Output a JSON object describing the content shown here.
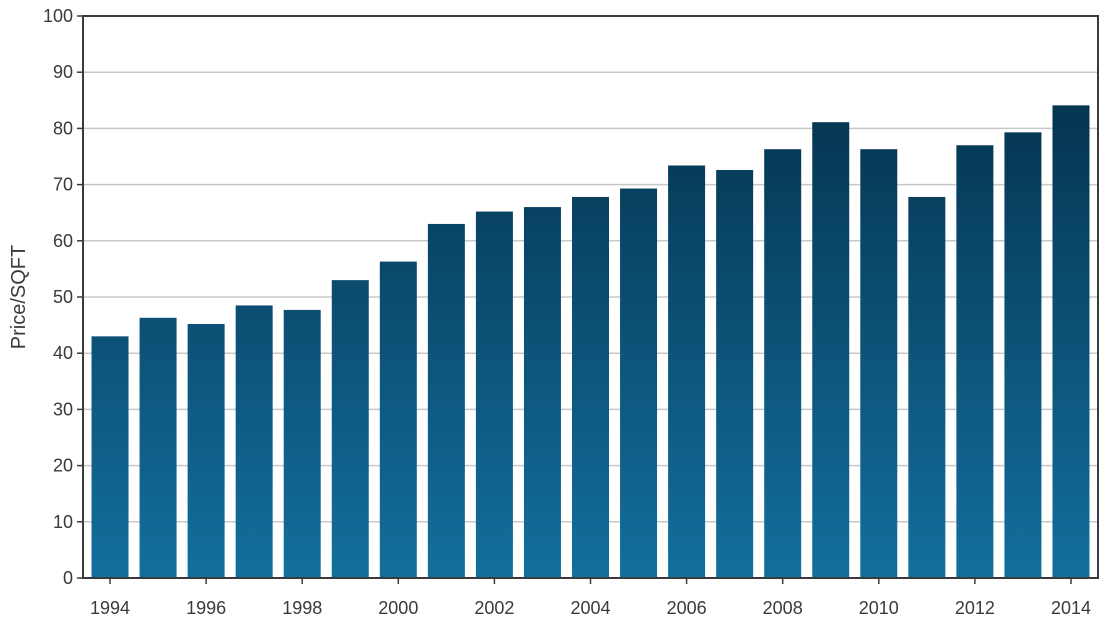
{
  "chart_data": {
    "type": "bar",
    "title": "",
    "xlabel": "",
    "ylabel": "Price/SQFT",
    "categories": [
      "1994",
      "1995",
      "1996",
      "1997",
      "1998",
      "1999",
      "2000",
      "2001",
      "2002",
      "2003",
      "2004",
      "2005",
      "2006",
      "2007",
      "2008",
      "2009",
      "2010",
      "2011",
      "2012",
      "2013",
      "2014"
    ],
    "x_tick_labels": [
      "1994",
      "1996",
      "1998",
      "2000",
      "2002",
      "2004",
      "2006",
      "2008",
      "2010",
      "2012",
      "2014"
    ],
    "values": [
      43,
      46.3,
      45.2,
      48.5,
      47.7,
      53,
      56.3,
      63,
      65.2,
      66,
      67.8,
      69.3,
      73.4,
      72.6,
      76.3,
      81.1,
      76.3,
      67.8,
      77,
      79.3,
      84.1
    ],
    "ylim": [
      0,
      100
    ],
    "yticks": [
      0,
      10,
      20,
      30,
      40,
      50,
      60,
      70,
      80,
      90,
      100
    ],
    "grid": true,
    "legend": "none",
    "colors": {
      "bar_top": "#022a42",
      "bar_bottom": "#136f9e",
      "grid": "#c8c8c8",
      "axis": "#3a3a3a"
    }
  }
}
